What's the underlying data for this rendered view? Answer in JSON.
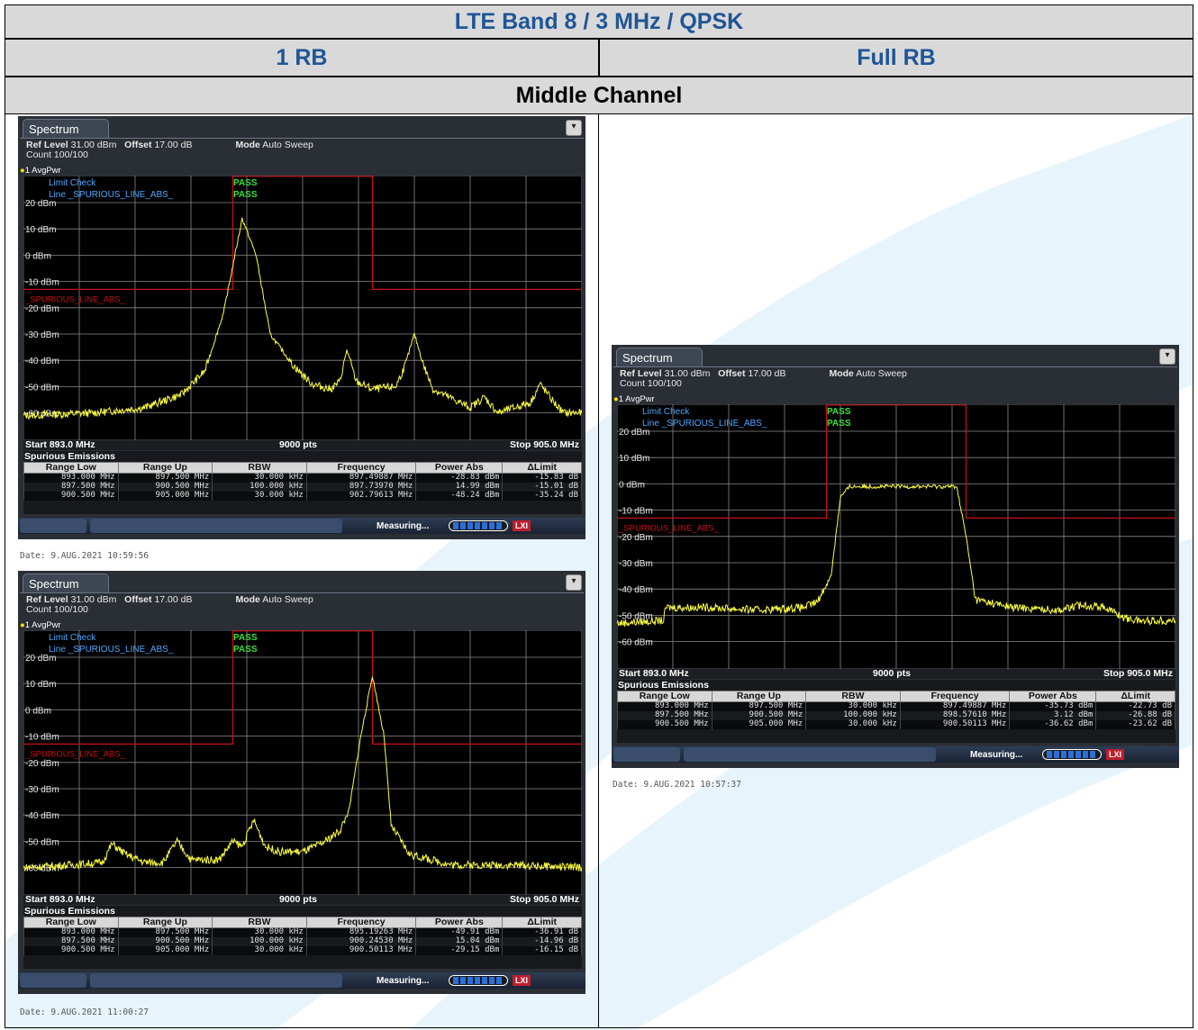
{
  "header": {
    "title": "LTE Band 8 / 3 MHz / QPSK",
    "col_left": "1 RB",
    "col_right": "Full RB",
    "channel": "Middle Channel"
  },
  "colors": {
    "trace": "#ffff40",
    "limit": "#cc1010",
    "grid": "#8a8a8a",
    "plot_bg": "#000000",
    "header_bg": "#d9d9d9",
    "header_text": "#1f5597",
    "watermark": "#e6f3fb"
  },
  "common": {
    "tab_label": "Spectrum",
    "menu_icon": "menu-icon",
    "ref_key": "Ref Level",
    "ref_val": "31.00 dBm",
    "off_key": "Offset",
    "off_val": "17.00 dB",
    "mode_key": "Mode",
    "mode_val": "Auto Sweep",
    "count": "Count 100/100",
    "trace_label": "1 AvgPwr",
    "limit_check": "Limit Check",
    "line_label": "Line _SPURIOUS_LINE_ABS_",
    "pass": "PASS",
    "limit_name": "_SPURIOUS_LINE_ABS_",
    "y_labels": [
      "20 dBm",
      "10 dBm",
      "0 dBm",
      "-10 dBm",
      "-20 dBm",
      "-30 dBm",
      "-40 dBm",
      "-50 dBm",
      "-60 dBm"
    ],
    "start": "Start 893.0 MHz",
    "pts": "9000 pts",
    "stop": "Stop 905.0 MHz",
    "spur_title": "Spurious Emissions",
    "cols": [
      "Range Low",
      "Range Up",
      "RBW",
      "Frequency",
      "Power Abs",
      "ΔLimit"
    ],
    "measuring": "Measuring...",
    "lxi": "LXI"
  },
  "panels": [
    {
      "id": "1rb-top",
      "date": "Date: 9.AUG.2021  10:59:56",
      "rows": [
        [
          "893.000 MHz",
          "897.500 MHz",
          "30.000 kHz",
          "897.49887 MHz",
          "-28.83 dBm",
          "-15.83 dB"
        ],
        [
          "897.500 MHz",
          "900.500 MHz",
          "100.000 kHz",
          "897.73970 MHz",
          "14.99 dBm",
          "-15.01 dB"
        ],
        [
          "900.500 MHz",
          "905.000 MHz",
          "30.000 kHz",
          "902.79613 MHz",
          "-48.24 dBm",
          "-35.24 dB"
        ]
      ],
      "trace": [
        [
          893.0,
          -61
        ],
        [
          894.5,
          -60
        ],
        [
          895.6,
          -58
        ],
        [
          896.4,
          -53
        ],
        [
          896.9,
          -44
        ],
        [
          897.3,
          -22
        ],
        [
          897.7,
          14
        ],
        [
          898.0,
          0
        ],
        [
          898.3,
          -30
        ],
        [
          898.8,
          -42
        ],
        [
          899.2,
          -49
        ],
        [
          899.6,
          -51
        ],
        [
          899.8,
          -48
        ],
        [
          899.95,
          -36
        ],
        [
          900.15,
          -48
        ],
        [
          900.5,
          -51
        ],
        [
          901.0,
          -50
        ],
        [
          901.2,
          -42
        ],
        [
          901.4,
          -30
        ],
        [
          901.6,
          -42
        ],
        [
          901.8,
          -51
        ],
        [
          902.6,
          -58
        ],
        [
          902.9,
          -54
        ],
        [
          903.2,
          -60
        ],
        [
          903.9,
          -56
        ],
        [
          904.1,
          -49
        ],
        [
          904.4,
          -56
        ],
        [
          904.6,
          -60
        ],
        [
          905.0,
          -60
        ]
      ]
    },
    {
      "id": "1rb-bottom",
      "date": "Date: 9.AUG.2021  11:00:27",
      "rows": [
        [
          "893.000 MHz",
          "897.500 MHz",
          "30.000 kHz",
          "895.19263 MHz",
          "-49.91 dBm",
          "-36.91 dB"
        ],
        [
          "897.500 MHz",
          "900.500 MHz",
          "100.000 kHz",
          "900.24530 MHz",
          "15.04 dBm",
          "-14.96 dB"
        ],
        [
          "900.500 MHz",
          "905.000 MHz",
          "30.000 kHz",
          "900.50113 MHz",
          "-29.15 dBm",
          "-16.15 dB"
        ]
      ],
      "trace": [
        [
          893.0,
          -60
        ],
        [
          894.0,
          -59
        ],
        [
          894.7,
          -58
        ],
        [
          894.9,
          -51
        ],
        [
          895.2,
          -55
        ],
        [
          895.6,
          -58
        ],
        [
          896.0,
          -58
        ],
        [
          896.3,
          -50
        ],
        [
          896.6,
          -57
        ],
        [
          897.2,
          -57
        ],
        [
          897.5,
          -50
        ],
        [
          897.7,
          -52
        ],
        [
          897.95,
          -42
        ],
        [
          898.2,
          -52
        ],
        [
          898.5,
          -54
        ],
        [
          899.0,
          -54
        ],
        [
          899.4,
          -51
        ],
        [
          899.8,
          -46
        ],
        [
          900.0,
          -38
        ],
        [
          900.15,
          -21
        ],
        [
          900.25,
          -10
        ],
        [
          900.5,
          13
        ],
        [
          900.75,
          -10
        ],
        [
          900.9,
          -44
        ],
        [
          901.3,
          -55
        ],
        [
          902.2,
          -59
        ],
        [
          903.5,
          -59
        ],
        [
          905.0,
          -60
        ]
      ]
    },
    {
      "id": "fullrb",
      "date": "Date: 9.AUG.2021  10:57:37",
      "rows": [
        [
          "893.000 MHz",
          "897.500 MHz",
          "30.000 kHz",
          "897.49887 MHz",
          "-35.73 dBm",
          "-22.73 dB"
        ],
        [
          "897.500 MHz",
          "900.500 MHz",
          "100.000 kHz",
          "898.57610 MHz",
          "3.12 dBm",
          "-26.88 dB"
        ],
        [
          "900.500 MHz",
          "905.000 MHz",
          "30.000 kHz",
          "900.50113 MHz",
          "-36.62 dBm",
          "-23.62 dB"
        ]
      ],
      "trace": [
        [
          893.0,
          -53
        ],
        [
          894.0,
          -52
        ],
        [
          894.05,
          -47
        ],
        [
          895.0,
          -47
        ],
        [
          896.0,
          -48
        ],
        [
          897.0,
          -47
        ],
        [
          897.3,
          -45
        ],
        [
          897.6,
          -35
        ],
        [
          897.8,
          -5
        ],
        [
          898.0,
          -1
        ],
        [
          899.0,
          -1
        ],
        [
          900.0,
          -1
        ],
        [
          900.3,
          -1
        ],
        [
          900.5,
          -20
        ],
        [
          900.7,
          -44
        ],
        [
          901.5,
          -47
        ],
        [
          902.5,
          -48
        ],
        [
          903.0,
          -46
        ],
        [
          903.5,
          -47
        ],
        [
          903.9,
          -51
        ],
        [
          904.2,
          -52
        ],
        [
          905.0,
          -52
        ]
      ]
    }
  ]
}
